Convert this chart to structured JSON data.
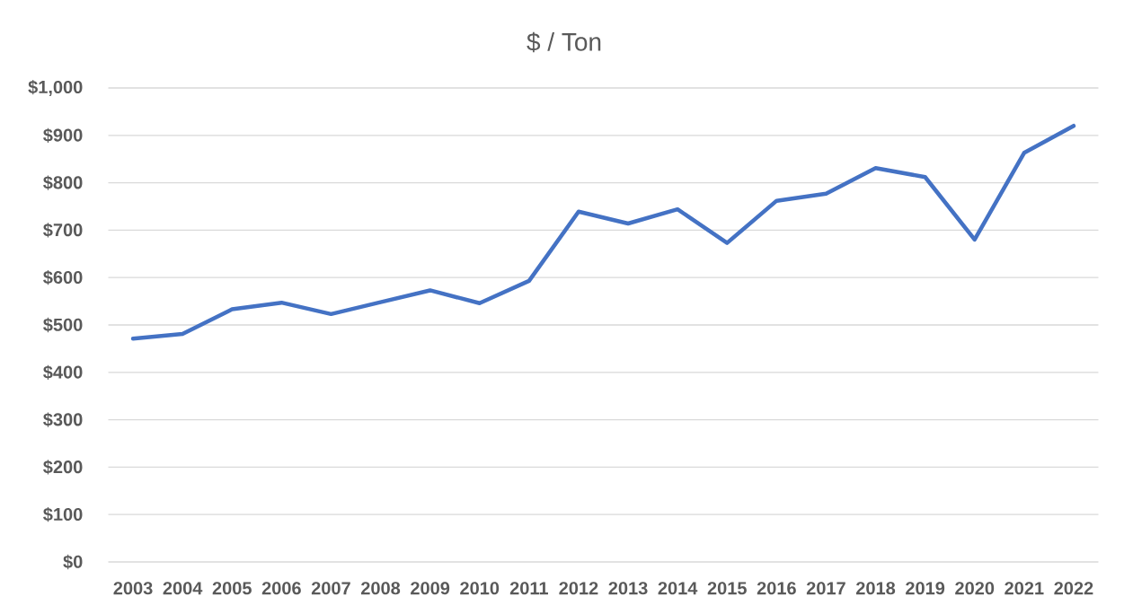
{
  "chart_data": {
    "type": "line",
    "title": "$ / Ton",
    "categories": [
      "2003",
      "2004",
      "2005",
      "2006",
      "2007",
      "2008",
      "2009",
      "2010",
      "2011",
      "2012",
      "2013",
      "2014",
      "2015",
      "2016",
      "2017",
      "2018",
      "2019",
      "2020",
      "2021",
      "2022"
    ],
    "series": [
      {
        "color": "#4472c4",
        "values": [
          471,
          481,
          533,
          547,
          523,
          548,
          573,
          546,
          593,
          739,
          714,
          744,
          673,
          762,
          777,
          831,
          812,
          680,
          863,
          920
        ]
      }
    ],
    "ylim": [
      0,
      1000
    ],
    "yticks": [
      {
        "value": 0,
        "label": "$0"
      },
      {
        "value": 100,
        "label": "$100"
      },
      {
        "value": 200,
        "label": "$200"
      },
      {
        "value": 300,
        "label": "$300"
      },
      {
        "value": 400,
        "label": "$400"
      },
      {
        "value": 500,
        "label": "$500"
      },
      {
        "value": 600,
        "label": "$600"
      },
      {
        "value": 700,
        "label": "$700"
      },
      {
        "value": 800,
        "label": "$800"
      },
      {
        "value": 900,
        "label": "$900"
      },
      {
        "value": 1000,
        "label": "$1,000"
      }
    ],
    "grid": "y",
    "marker": "none",
    "line_style": "solid"
  }
}
